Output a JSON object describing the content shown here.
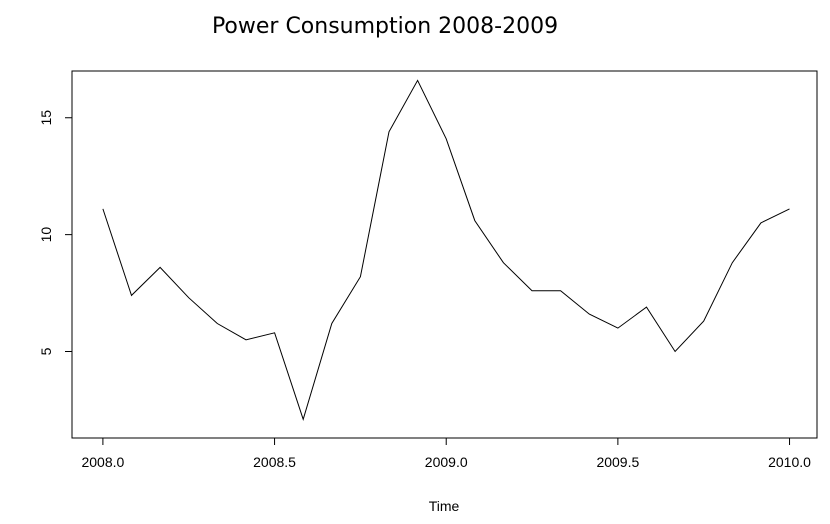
{
  "chart_data": {
    "type": "line",
    "title": "Power Consumption 2008-2009",
    "xlabel": "Time",
    "ylabel": "",
    "xlim": [
      2007.91,
      2010.08
    ],
    "ylim": [
      1.3,
      17.0
    ],
    "xticks": [
      2008.0,
      2008.5,
      2009.0,
      2009.5,
      2010.0
    ],
    "xtick_labels": [
      "2008.0",
      "2008.5",
      "2009.0",
      "2009.5",
      "2010.0"
    ],
    "yticks": [
      5,
      10,
      15
    ],
    "ytick_labels": [
      "5",
      "10",
      "15"
    ],
    "grid": false,
    "series": [
      {
        "x": [
          2008.0,
          2008.0833,
          2008.1667,
          2008.25,
          2008.3333,
          2008.4167,
          2008.5,
          2008.5833,
          2008.6667,
          2008.75,
          2008.8333,
          2008.9167,
          2009.0,
          2009.0833,
          2009.1667,
          2009.25,
          2009.3333,
          2009.4167,
          2009.5,
          2009.5833,
          2009.6667,
          2009.75,
          2009.8333,
          2009.9167,
          2010.0
        ],
        "values": [
          11.1,
          7.4,
          8.6,
          7.3,
          6.2,
          5.5,
          5.8,
          2.1,
          6.2,
          8.2,
          14.4,
          16.6,
          14.1,
          10.6,
          8.8,
          7.6,
          7.6,
          6.6,
          6.0,
          6.9,
          5.0,
          6.3,
          8.8,
          10.5,
          11.1
        ]
      }
    ]
  }
}
